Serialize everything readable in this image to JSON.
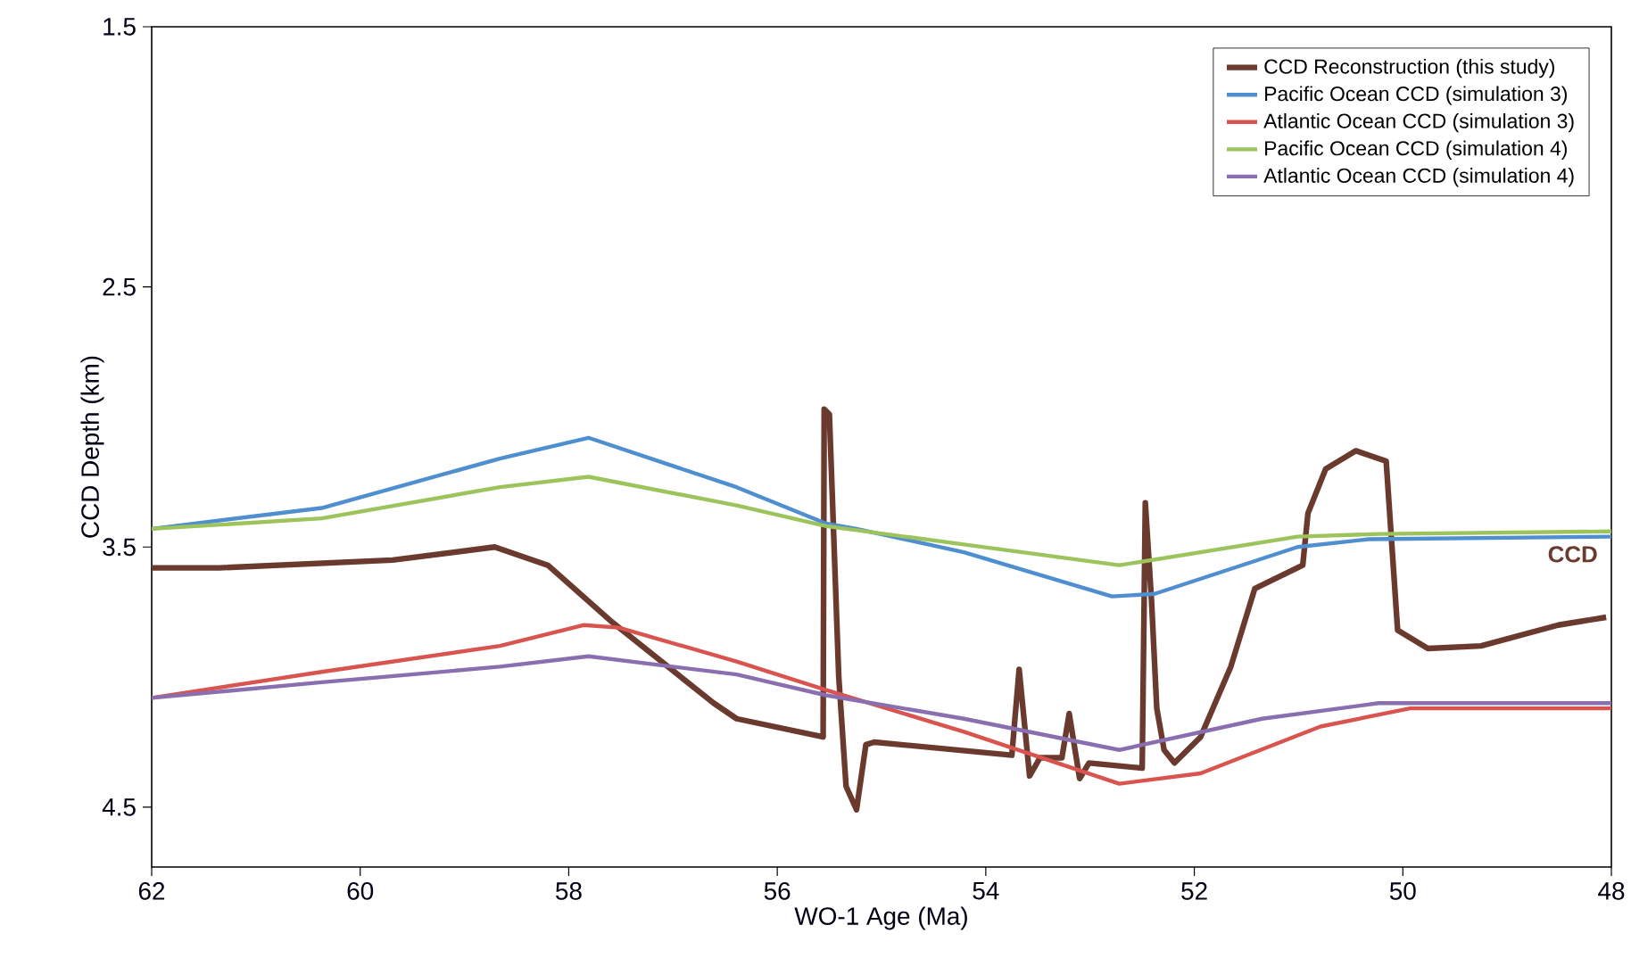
{
  "chart_data": {
    "type": "line",
    "xlabel": "WO-1 Age (Ma)",
    "ylabel": "CCD Depth (km)",
    "xlim": [
      62,
      48
    ],
    "xticks": [
      62,
      60,
      58,
      56,
      54,
      52,
      50,
      48
    ],
    "ylim": [
      4.73,
      1.5
    ],
    "yticks": [
      1.5,
      2.5,
      3.5,
      4.5
    ],
    "legend": "top right",
    "annotations": [
      "CCD"
    ],
    "series": [
      {
        "name": "CCD Reconstruction (this study)",
        "color": "#6b3a2e",
        "x": [
          62,
          61.35,
          59.69,
          58.71,
          58.2,
          57.58,
          56.61,
          56.39,
          55.56,
          55.55,
          55.5,
          55.41,
          55.34,
          55.24,
          55.15,
          55.07,
          53.75,
          53.68,
          53.58,
          53.48,
          53.27,
          53.2,
          53.1,
          53.01,
          52.5,
          52.47,
          52.41,
          52.36,
          52.29,
          52.19,
          51.94,
          51.65,
          51.42,
          50.96,
          50.91,
          50.74,
          50.45,
          50.16,
          50.05,
          49.76,
          49.25,
          48.51,
          48.05
        ],
        "values": [
          3.58,
          3.58,
          3.55,
          3.5,
          3.57,
          3.79,
          4.1,
          4.16,
          4.23,
          2.97,
          2.99,
          4.0,
          4.42,
          4.51,
          4.26,
          4.25,
          4.3,
          3.97,
          4.38,
          4.31,
          4.31,
          4.14,
          4.39,
          4.33,
          4.35,
          3.33,
          3.71,
          4.12,
          4.28,
          4.33,
          4.23,
          3.96,
          3.66,
          3.57,
          3.37,
          3.2,
          3.13,
          3.17,
          3.82,
          3.89,
          3.88,
          3.8,
          3.77
        ]
      },
      {
        "name": "Pacific Ocean CCD (simulation 3)",
        "color": "#4f8fcf",
        "x": [
          62,
          60.37,
          58.66,
          57.81,
          56.39,
          55.53,
          55.24,
          54.21,
          52.79,
          52.38,
          51.01,
          50.33,
          48
        ],
        "values": [
          3.43,
          3.35,
          3.16,
          3.08,
          3.27,
          3.41,
          3.43,
          3.52,
          3.69,
          3.68,
          3.5,
          3.47,
          3.46
        ]
      },
      {
        "name": "Atlantic Ocean CCD (simulation 3)",
        "color": "#d9534f",
        "x": [
          62,
          60.37,
          58.66,
          57.86,
          57.52,
          56.39,
          55.92,
          55.53,
          54.21,
          52.72,
          51.94,
          50.79,
          49.93,
          48
        ],
        "values": [
          4.08,
          3.98,
          3.88,
          3.8,
          3.81,
          3.94,
          4.0,
          4.05,
          4.21,
          4.41,
          4.37,
          4.19,
          4.12,
          4.12
        ]
      },
      {
        "name": "Pacific Ocean CCD (simulation 4)",
        "color": "#9dc35c",
        "x": [
          62,
          60.37,
          58.66,
          57.81,
          56.39,
          55.53,
          54.21,
          52.72,
          51.01,
          50.23,
          48
        ],
        "values": [
          3.43,
          3.39,
          3.27,
          3.23,
          3.34,
          3.42,
          3.49,
          3.57,
          3.46,
          3.45,
          3.44
        ]
      },
      {
        "name": "Atlantic Ocean CCD (simulation 4)",
        "color": "#8a6fb0",
        "x": [
          62,
          60.37,
          58.66,
          57.81,
          56.39,
          55.53,
          54.21,
          52.72,
          51.35,
          50.23,
          48
        ],
        "values": [
          4.08,
          4.02,
          3.96,
          3.92,
          3.99,
          4.07,
          4.16,
          4.28,
          4.16,
          4.1,
          4.1
        ]
      }
    ]
  }
}
